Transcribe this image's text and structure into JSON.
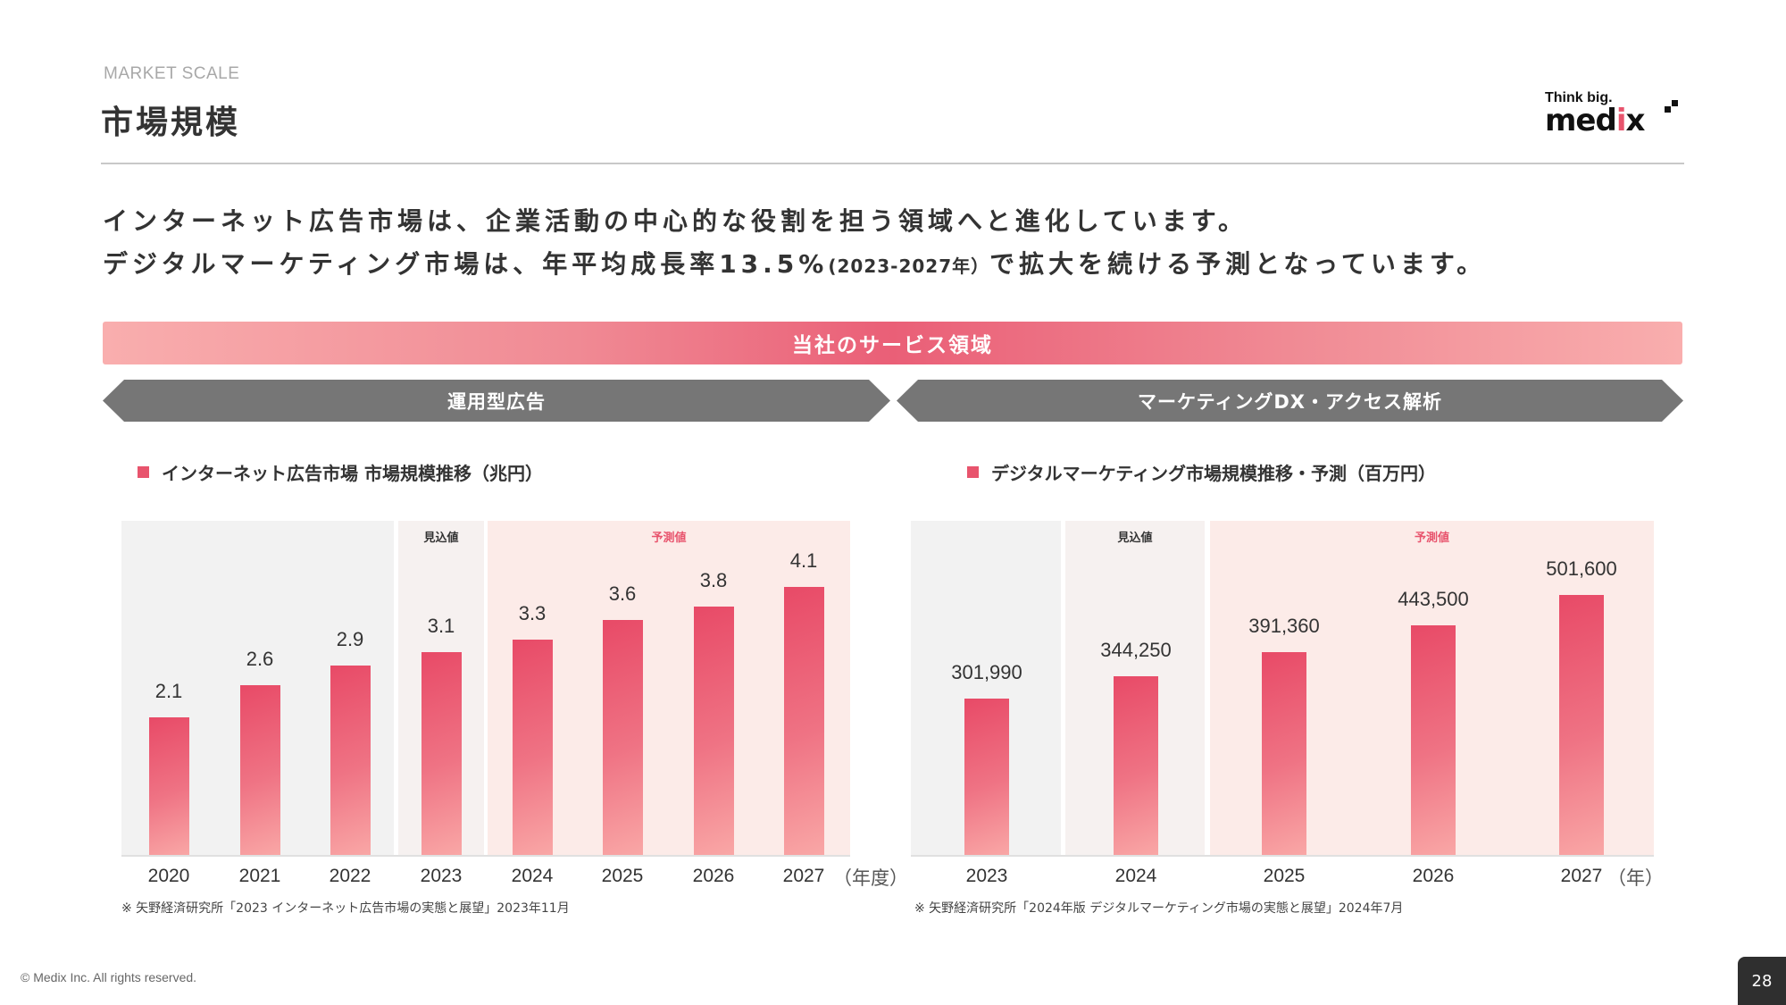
{
  "header": {
    "kicker": "MARKET SCALE",
    "title": "市場規模"
  },
  "logo": {
    "tagline": "Think big.",
    "name": "medix",
    "accent": "#e8546d"
  },
  "lead": {
    "line1": "インターネット広告市場は、企業活動の中心的な役割を担う領域へと進化しています。",
    "line2_a": "デジタルマーケティング市場は、年平均成長率13.5%",
    "line2_b": "(2023-2027年）",
    "line2_c": "で拡大を続ける予測となっています。"
  },
  "banner": {
    "label": "当社のサービス領域"
  },
  "arrows": {
    "left": "運用型広告",
    "right": "マーケティングDX・アクセス解析"
  },
  "colors": {
    "bar": "#e8546d",
    "actual_bg": "#f2f2f2",
    "estimate_bg": "#f6f1f0",
    "forecast_bg": "#fcebe8",
    "forecast_label": "#e8546d"
  },
  "chart_data": [
    {
      "type": "bar",
      "title": "インターネット広告市場 市場規模推移（兆円）",
      "categories": [
        "2020",
        "2021",
        "2022",
        "2023",
        "2024",
        "2025",
        "2026",
        "2027"
      ],
      "values": [
        2.1,
        2.6,
        2.9,
        3.1,
        3.3,
        3.6,
        3.8,
        4.1
      ],
      "value_labels": [
        "2.1",
        "2.6",
        "2.9",
        "3.1",
        "3.3",
        "3.6",
        "3.8",
        "4.1"
      ],
      "unit_suffix": "（年度）",
      "estimate_label": "見込値",
      "forecast_label": "予測値",
      "estimate_categories": [
        "2023"
      ],
      "forecast_categories": [
        "2024",
        "2025",
        "2026",
        "2027"
      ],
      "source": "※ 矢野経済研究所「2023 インターネット広告市場の実態と展望」2023年11月"
    },
    {
      "type": "bar",
      "title": "デジタルマーケティング市場規模推移・予測（百万円）",
      "categories": [
        "2023",
        "2024",
        "2025",
        "2026",
        "2027"
      ],
      "values": [
        301990,
        344250,
        391360,
        443500,
        501600
      ],
      "value_labels": [
        "301,990",
        "344,250",
        "391,360",
        "443,500",
        "501,600"
      ],
      "unit_suffix": "（年）",
      "estimate_label": "見込値",
      "forecast_label": "予測値",
      "estimate_categories": [
        "2024"
      ],
      "forecast_categories": [
        "2025",
        "2026",
        "2027"
      ],
      "source": "※ 矢野経済研究所「2024年版 デジタルマーケティング市場の実態と展望」2024年7月"
    }
  ],
  "footer": {
    "copyright": "© Medix Inc. All rights reserved.",
    "page": "28"
  }
}
